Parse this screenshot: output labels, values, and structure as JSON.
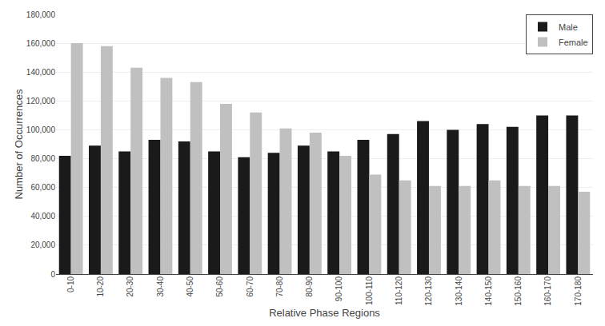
{
  "chart_data": {
    "type": "bar",
    "categories": [
      "0-10",
      "10-20",
      "20-30",
      "30-40",
      "40-50",
      "50-60",
      "60-70",
      "70-80",
      "80-90",
      "90-100",
      "100-110",
      "110-120",
      "120-130",
      "130-140",
      "140-150",
      "150-160",
      "160-170",
      "170-180"
    ],
    "series": [
      {
        "name": "Male",
        "color": "#1a1a1a",
        "values": [
          82000,
          89000,
          85000,
          93000,
          92000,
          85000,
          81000,
          84000,
          89000,
          85000,
          93000,
          97000,
          106000,
          100000,
          104000,
          102000,
          110000,
          110000
        ]
      },
      {
        "name": "Female",
        "color": "#c0c0c0",
        "values": [
          160000,
          158000,
          143000,
          136000,
          133000,
          118000,
          112000,
          101000,
          98000,
          82000,
          69000,
          65000,
          61000,
          61000,
          65000,
          61000,
          61000,
          57000
        ]
      }
    ],
    "xlabel": "Relative Phase Regions",
    "ylabel": "Number of Occurrences",
    "ylim": [
      0,
      180000
    ],
    "yticks": [
      0,
      {
        "value": 20000,
        "label": "20,000"
      },
      {
        "value": 40000,
        "label": "40,000"
      },
      {
        "value": 60000,
        "label": "60,000"
      },
      {
        "value": 80000,
        "label": "80,000"
      },
      {
        "value": 100000,
        "label": "100,000"
      },
      {
        "value": 120000,
        "label": "120,000"
      },
      {
        "value": 140000,
        "label": "140,000"
      },
      {
        "value": 160000,
        "label": "160,000"
      },
      {
        "value": 180000,
        "label": "180,000"
      }
    ],
    "grid": true,
    "legend": "upper right"
  }
}
